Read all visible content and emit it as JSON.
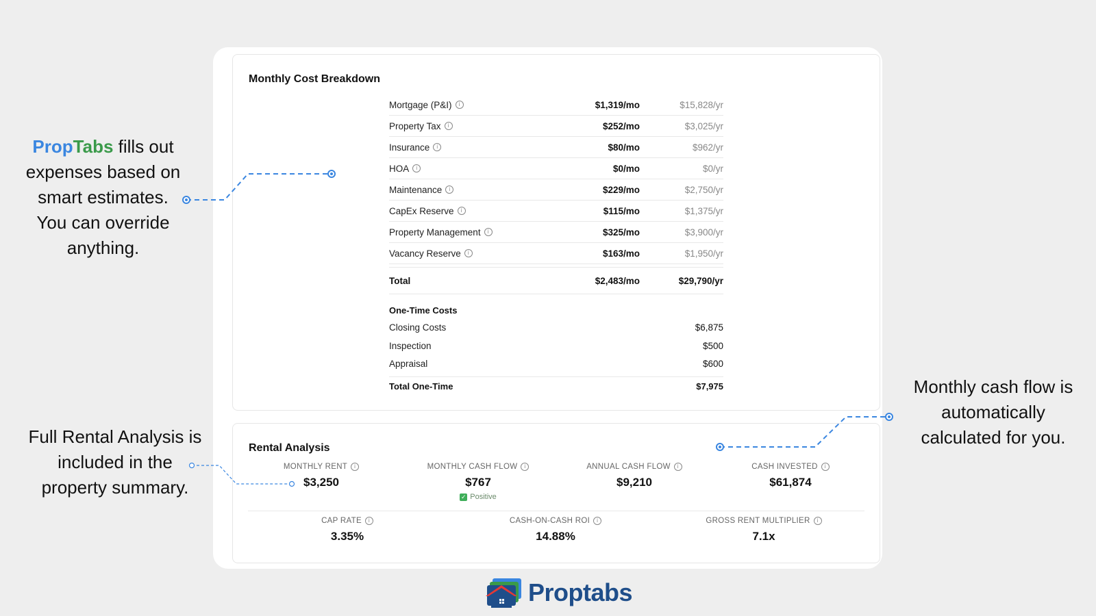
{
  "cost_breakdown": {
    "title": "Monthly Cost Breakdown",
    "rows": [
      {
        "label": "Mortgage (P&I)",
        "monthly": "$1,319/mo",
        "yearly": "$15,828/yr"
      },
      {
        "label": "Property Tax",
        "monthly": "$252/mo",
        "yearly": "$3,025/yr"
      },
      {
        "label": "Insurance",
        "monthly": "$80/mo",
        "yearly": "$962/yr"
      },
      {
        "label": "HOA",
        "monthly": "$0/mo",
        "yearly": "$0/yr"
      },
      {
        "label": "Maintenance",
        "monthly": "$229/mo",
        "yearly": "$2,750/yr"
      },
      {
        "label": "CapEx Reserve",
        "monthly": "$115/mo",
        "yearly": "$1,375/yr"
      },
      {
        "label": "Property Management",
        "monthly": "$325/mo",
        "yearly": "$3,900/yr"
      },
      {
        "label": "Vacancy Reserve",
        "monthly": "$163/mo",
        "yearly": "$1,950/yr"
      }
    ],
    "total": {
      "label": "Total",
      "monthly": "$2,483/mo",
      "yearly": "$29,790/yr"
    },
    "one_time": {
      "title": "One-Time Costs",
      "rows": [
        {
          "label": "Closing Costs",
          "value": "$6,875"
        },
        {
          "label": "Inspection",
          "value": "$500"
        },
        {
          "label": "Appraisal",
          "value": "$600"
        }
      ],
      "total": {
        "label": "Total One-Time",
        "value": "$7,975"
      }
    }
  },
  "rental_analysis": {
    "title": "Rental Analysis",
    "metrics": [
      {
        "label": "MONTHLY RENT",
        "value": "$3,250"
      },
      {
        "label": "MONTHLY CASH FLOW",
        "value": "$767",
        "badge": "Positive"
      },
      {
        "label": "ANNUAL CASH FLOW",
        "value": "$9,210"
      },
      {
        "label": "CASH INVESTED",
        "value": "$61,874"
      },
      {
        "label": "CAP RATE",
        "value": "3.35%"
      },
      {
        "label": "CASH-ON-CASH ROI",
        "value": "14.88%"
      },
      {
        "label": "GROSS RENT MULTIPLIER",
        "value": "7.1x"
      }
    ]
  },
  "annotations": {
    "left_top": {
      "brand_prop": "Prop",
      "brand_tabs": "Tabs",
      "text_line1": " fills out",
      "line2": "expenses based on",
      "line3": "smart estimates.",
      "line4": "You can override",
      "line5": "anything."
    },
    "left_bottom": {
      "line1": "Full Rental Analysis is",
      "line2": "included in the",
      "line3": "property summary."
    },
    "right": {
      "line1": "Monthly cash flow is",
      "line2": "automatically",
      "line3": "calculated for you."
    }
  },
  "logo": {
    "text": "Proptabs"
  },
  "colors": {
    "accent_blue": "#3a86e0",
    "brand_green": "#3a9a4a",
    "logo_navy": "#1f4e8a",
    "positive_green": "#3fae5a"
  }
}
